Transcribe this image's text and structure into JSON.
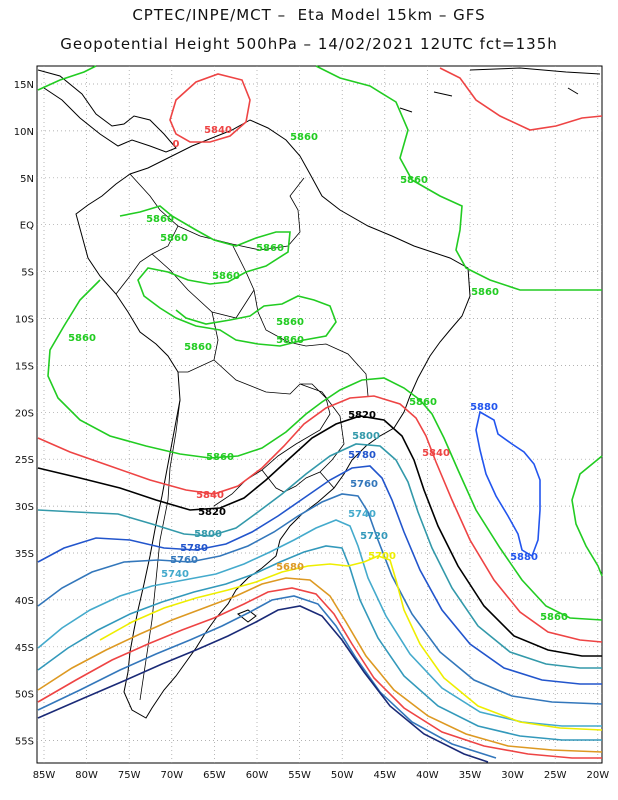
{
  "header": {
    "line1": "CPTEC/INPE/MCT –  Eta Model 15km – GFS",
    "line2": "Geopotential Height 500hPa – 14/02/2021 12UTC fct=135h"
  },
  "axes": {
    "lat_labels": [
      "15N",
      "10N",
      "5N",
      "EQ",
      "5S",
      "10S",
      "15S",
      "20S",
      "25S",
      "30S",
      "35S",
      "40S",
      "45S",
      "50S",
      "55S"
    ],
    "lon_labels": [
      "85W",
      "80W",
      "75W",
      "70W",
      "65W",
      "60W",
      "55W",
      "50W",
      "45W",
      "40W",
      "35W",
      "30W",
      "25W",
      "20W"
    ]
  },
  "contours": {
    "colors": {
      "5860": "#22cc22",
      "5840": "#ee4444",
      "5820": "#000000",
      "5800": "#3399aa",
      "5780": "#2255cc",
      "5760": "#3377bb",
      "5740": "#44aacc",
      "5720": "#3399bb",
      "5700": "#eeee00",
      "5680": "#dd9922",
      "5880": "#2255ee"
    },
    "labels": [
      {
        "text": "5840"
      },
      {
        "text": "0"
      },
      {
        "text": "5860"
      },
      {
        "text": "5860"
      },
      {
        "text": "5860"
      },
      {
        "text": "5860"
      },
      {
        "text": "5860"
      },
      {
        "text": "5860"
      },
      {
        "text": "5860"
      },
      {
        "text": "5860"
      },
      {
        "text": "5860"
      },
      {
        "text": "5860"
      },
      {
        "text": "5860"
      },
      {
        "text": "5860"
      },
      {
        "text": "5860"
      },
      {
        "text": "5860"
      },
      {
        "text": "5880"
      },
      {
        "text": "5880"
      },
      {
        "text": "5820"
      },
      {
        "text": "5800"
      },
      {
        "text": "5780"
      },
      {
        "text": "5760"
      },
      {
        "text": "5740"
      },
      {
        "text": "5720"
      },
      {
        "text": "5700"
      },
      {
        "text": "5680"
      },
      {
        "text": "5840"
      },
      {
        "text": "5840"
      },
      {
        "text": "5820"
      },
      {
        "text": "5800"
      },
      {
        "text": "5780"
      },
      {
        "text": "5760"
      },
      {
        "text": "5740"
      }
    ]
  }
}
